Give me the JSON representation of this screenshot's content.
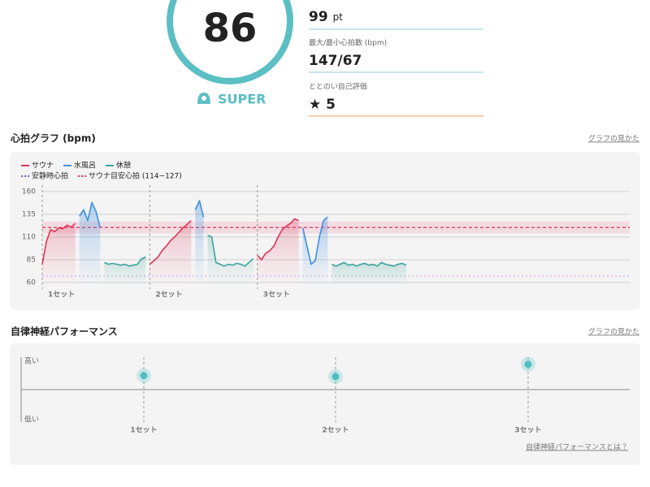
{
  "summary": {
    "score": 86,
    "rank": "SUPER",
    "items": [
      {
        "value": "99",
        "unit": "pt"
      },
      {
        "label": "最大/最小心拍数 (bpm)",
        "value": "147/67"
      },
      {
        "label": "ととのい自己評価",
        "value": "5"
      }
    ]
  },
  "chart_data": [
    {
      "type": "line",
      "title": "心拍グラフ (bpm)",
      "link": "グラフの見かた",
      "series": [
        {
          "name": "サウナ",
          "color": "#e0335a"
        },
        {
          "name": "水風呂",
          "color": "#3d8fe0"
        },
        {
          "name": "休憩",
          "color": "#3aa39a"
        }
      ],
      "resting_hr": {
        "name": "安静時心拍",
        "value": 67,
        "color": "#8a4fd6"
      },
      "target_band": {
        "name": "サウナ目安心拍 (114~127)",
        "range": [
          114,
          127
        ],
        "color": "#e0335a"
      },
      "ylim": [
        60,
        160
      ],
      "yticks": [
        160,
        135,
        110,
        85,
        60
      ],
      "grid": true,
      "sets": [
        {
          "label": "1セット",
          "segments": [
            [
              80,
              105,
              118,
              116,
              120,
              119,
              123,
              121,
              125
            ],
            [
              133,
              140,
              128,
              148,
              138,
              120
            ],
            [
              82,
              80,
              81,
              80,
              79,
              80,
              78,
              79,
              80,
              86,
              88
            ]
          ]
        },
        {
          "label": "2セット",
          "segments": [
            [
              80,
              84,
              88,
              95,
              100,
              106,
              110,
              115,
              120,
              124,
              128
            ],
            [
              140,
              150,
              132
            ],
            [
              112,
              110,
              82,
              80,
              78,
              80,
              79,
              81,
              80,
              78,
              82,
              86
            ]
          ]
        },
        {
          "label": "3セット",
          "segments": [
            [
              90,
              85,
              92,
              95,
              100,
              110,
              118,
              122,
              125,
              130,
              128
            ],
            [
              120,
              100,
              80,
              84,
              110,
              128,
              132
            ],
            [
              80,
              78,
              80,
              82,
              79,
              80,
              78,
              80,
              81,
              79,
              80,
              78,
              82,
              80,
              79,
              78,
              80,
              81,
              79
            ]
          ]
        }
      ]
    },
    {
      "type": "scatter",
      "title": "自律神経パフォーマンス",
      "link": "グラフの見かた",
      "footer_link": "自律神経パフォーマンスとは？",
      "categories": [
        "1セット",
        "2セット",
        "3セット"
      ],
      "values": [
        0.43,
        0.4,
        0.78
      ],
      "ylim": [
        -1,
        1
      ],
      "y_labels": [
        "高い",
        "低い"
      ],
      "color": "#4fbfbf"
    }
  ]
}
